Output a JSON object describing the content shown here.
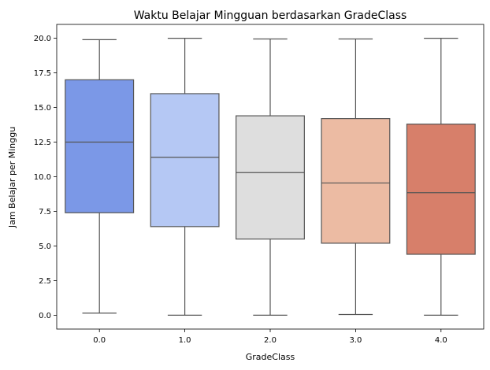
{
  "chart_data": {
    "type": "box",
    "title": "Waktu Belajar Mingguan berdasarkan GradeClass",
    "xlabel": "GradeClass",
    "ylabel": "Jam Belajar per Minggu",
    "ylim": [
      -1.0,
      21.0
    ],
    "yticks": [
      "0.0",
      "2.5",
      "5.0",
      "7.5",
      "10.0",
      "12.5",
      "15.0",
      "17.5",
      "20.0"
    ],
    "categories": [
      "0.0",
      "1.0",
      "2.0",
      "3.0",
      "4.0"
    ],
    "boxes": [
      {
        "category": "0.0",
        "min": 0.15,
        "q1": 7.4,
        "median": 12.5,
        "q3": 17.0,
        "max": 19.9,
        "color": "#7b98e7"
      },
      {
        "category": "1.0",
        "min": 0.0,
        "q1": 6.4,
        "median": 11.4,
        "q3": 16.0,
        "max": 20.0,
        "color": "#b5c8f4"
      },
      {
        "category": "2.0",
        "min": 0.0,
        "q1": 5.5,
        "median": 10.3,
        "q3": 14.4,
        "max": 19.95,
        "color": "#dedede"
      },
      {
        "category": "3.0",
        "min": 0.05,
        "q1": 5.2,
        "median": 9.55,
        "q3": 14.2,
        "max": 19.95,
        "color": "#ecbba3"
      },
      {
        "category": "4.0",
        "min": 0.0,
        "q1": 4.4,
        "median": 8.85,
        "q3": 13.8,
        "max": 20.0,
        "color": "#d77f6a"
      }
    ],
    "grid": false,
    "legend": "none"
  }
}
